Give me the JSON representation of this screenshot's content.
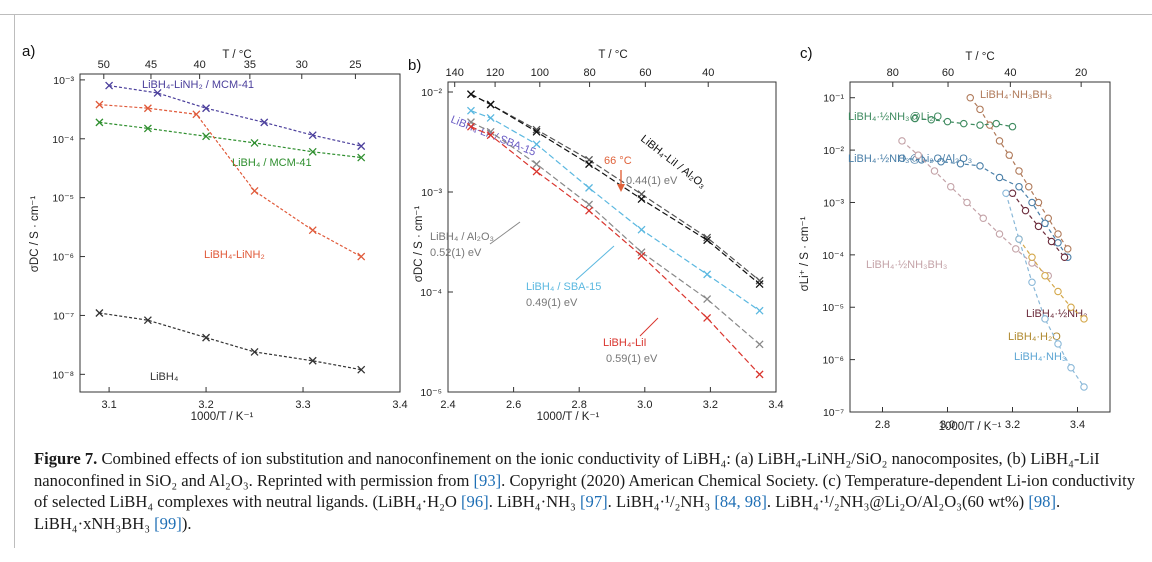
{
  "chart_data": [
    {
      "type": "scatter",
      "panel_label": "a)",
      "xlabel": "1000/T / K⁻¹",
      "ylabel": "σDC / S · cm⁻¹",
      "top_xlabel": "T / °C",
      "xlim": [
        3.07,
        3.4
      ],
      "ylim_log10": [
        -8.3,
        -2.9
      ],
      "y_scale": "log",
      "grid": false,
      "x_ticks": [
        "3.1",
        "3.2",
        "3.3",
        "3.4"
      ],
      "x_tick_values": [
        3.1,
        3.2,
        3.3,
        3.4
      ],
      "y_ticks": [
        "10⁻⁸",
        "10⁻⁷",
        "10⁻⁶",
        "10⁻⁵",
        "10⁻⁴",
        "10⁻³"
      ],
      "y_tick_exps": [
        -8,
        -7,
        -6,
        -5,
        -4,
        -3
      ],
      "top_ticks": [
        "50",
        "45",
        "40",
        "35",
        "30",
        "25"
      ],
      "top_tick_celsius": [
        50,
        45,
        40,
        35,
        30,
        25
      ],
      "series": [
        {
          "name": "LiBH₄-LiNH₂ / MCM-41",
          "color": "#4b3f9c",
          "x": [
            3.1,
            3.15,
            3.2,
            3.26,
            3.31,
            3.36
          ],
          "y": [
            0.0008,
            0.0006,
            0.00033,
            0.00019,
            0.000115,
            7.5e-05
          ]
        },
        {
          "name": "LiBH₄ / MCM-41",
          "color": "#2f8f2f",
          "x": [
            3.09,
            3.14,
            3.2,
            3.25,
            3.31,
            3.36
          ],
          "y": [
            0.00019,
            0.00015,
            0.00011,
            8.5e-05,
            6e-05,
            4.8e-05
          ]
        },
        {
          "name": "LiBH₄-LiNH₂",
          "color": "#e05a3a",
          "x": [
            3.09,
            3.14,
            3.19,
            3.25,
            3.31,
            3.36
          ],
          "y": [
            0.00038,
            0.00033,
            0.00026,
            1.3e-05,
            2.8e-06,
            1e-06
          ]
        },
        {
          "name": "LiBH₄",
          "color": "#333333",
          "x": [
            3.09,
            3.14,
            3.2,
            3.25,
            3.31,
            3.36
          ],
          "y": [
            1.1e-07,
            8.3e-08,
            4.2e-08,
            2.4e-08,
            1.7e-08,
            1.2e-08
          ]
        }
      ]
    },
    {
      "type": "scatter",
      "panel_label": "b)",
      "xlabel": "1000/T / K⁻¹",
      "ylabel": "σDC / S · cm⁻¹",
      "top_xlabel": "T / °C",
      "xlim": [
        2.4,
        3.4
      ],
      "ylim_log10": [
        -5,
        -1.9
      ],
      "y_scale": "log",
      "grid": false,
      "x_ticks": [
        "2.4",
        "2.6",
        "2.8",
        "3.0",
        "3.2",
        "3.4"
      ],
      "x_tick_values": [
        2.4,
        2.6,
        2.8,
        3.0,
        3.2,
        3.4
      ],
      "y_ticks": [
        "10⁻⁵",
        "10⁻⁴",
        "10⁻³",
        "10⁻²"
      ],
      "y_tick_exps": [
        -5,
        -4,
        -3,
        -2
      ],
      "top_ticks": [
        "140",
        "120",
        "100",
        "80",
        "60",
        "40"
      ],
      "top_tick_celsius": [
        140,
        120,
        100,
        80,
        60,
        40
      ],
      "annotations": [
        "66 °C",
        "0.44(1) eV",
        "0.52(1) eV",
        "0.49(1) eV",
        "0.59(1) eV"
      ],
      "series": [
        {
          "name": "LiBH₄-LiI / SBA-15",
          "color": "#555555",
          "x": [
            2.47,
            2.53,
            2.67,
            2.83,
            2.99,
            3.19,
            3.35
          ],
          "y": [
            0.0095,
            0.0075,
            0.0042,
            0.0021,
            0.00095,
            0.00035,
            0.00013
          ]
        },
        {
          "name": "LiBH₄-LiI / Al₂O₃",
          "color": "#111111",
          "x": [
            2.47,
            2.53,
            2.67,
            2.83,
            2.99,
            3.19,
            3.35
          ],
          "y": [
            0.0095,
            0.0075,
            0.004,
            0.0019,
            0.00085,
            0.00033,
            0.00012
          ]
        },
        {
          "name": "LiBH₄ / Al₂O₃",
          "color": "#888888",
          "x": [
            2.47,
            2.53,
            2.67,
            2.83,
            2.99,
            3.19,
            3.35
          ],
          "y": [
            0.005,
            0.004,
            0.0019,
            0.00075,
            0.00025,
            8.5e-05,
            3e-05
          ]
        },
        {
          "name": "LiBH₄ / SBA-15",
          "color": "#5bb8e0",
          "x": [
            2.47,
            2.53,
            2.67,
            2.83,
            2.99,
            3.19,
            3.35
          ],
          "y": [
            0.0065,
            0.0055,
            0.003,
            0.0011,
            0.00042,
            0.00015,
            6.5e-05
          ]
        },
        {
          "name": "LiBH₄-LiI",
          "color": "#d9352e",
          "x": [
            2.47,
            2.53,
            2.67,
            2.83,
            2.99,
            3.19,
            3.35
          ],
          "y": [
            0.0045,
            0.0037,
            0.0016,
            0.00065,
            0.00023,
            5.5e-05,
            1.5e-05
          ]
        }
      ]
    },
    {
      "type": "scatter",
      "panel_label": "c)",
      "xlabel": "1000/T / K⁻¹",
      "ylabel": "σLi⁺ / S · cm⁻¹",
      "top_xlabel": "T / °C",
      "xlim": [
        2.7,
        3.5
      ],
      "ylim_log10": [
        -7,
        -0.7
      ],
      "y_scale": "log",
      "grid": false,
      "x_ticks": [
        "2.8",
        "3.0",
        "3.2",
        "3.4"
      ],
      "x_tick_values": [
        2.8,
        3.0,
        3.2,
        3.4
      ],
      "y_ticks": [
        "10⁻⁷",
        "10⁻⁶",
        "10⁻⁵",
        "10⁻⁴",
        "10⁻³",
        "10⁻²",
        "10⁻¹"
      ],
      "y_tick_exps": [
        -7,
        -6,
        -5,
        -4,
        -3,
        -2,
        -1
      ],
      "top_ticks": [
        "80",
        "60",
        "40",
        "20"
      ],
      "top_tick_celsius": [
        80,
        60,
        40,
        20
      ],
      "series": [
        {
          "name": "LiBH₄·NH₃BH₃",
          "color": "#b07a5a",
          "x": [
            3.07,
            3.1,
            3.13,
            3.16,
            3.19,
            3.22,
            3.25,
            3.28,
            3.31,
            3.34,
            3.37
          ],
          "y": [
            0.1,
            0.06,
            0.03,
            0.015,
            0.008,
            0.004,
            0.002,
            0.001,
            0.0005,
            0.00025,
            0.00013
          ]
        },
        {
          "name": "LiBH₄·½NH₃@Li₂O",
          "color": "#3e8a5f",
          "x": [
            2.9,
            2.95,
            3.0,
            3.05,
            3.1,
            3.15,
            3.2
          ],
          "y": [
            0.04,
            0.038,
            0.035,
            0.032,
            0.03,
            0.032,
            0.028
          ]
        },
        {
          "name": "LiBH₄·½NH₃@Li₂O/Al₂O₃",
          "color": "#4a7fa8",
          "x": [
            2.86,
            2.92,
            2.98,
            3.04,
            3.1,
            3.16,
            3.22,
            3.26,
            3.3,
            3.34,
            3.37
          ],
          "y": [
            0.007,
            0.0065,
            0.006,
            0.0055,
            0.005,
            0.003,
            0.002,
            0.001,
            0.0004,
            0.00017,
            9e-05
          ]
        },
        {
          "name": "LiBH₄·½NH₃BH₃",
          "color": "#c4a3a8",
          "x": [
            2.86,
            2.91,
            2.96,
            3.01,
            3.06,
            3.11,
            3.16,
            3.21,
            3.26,
            3.31
          ],
          "y": [
            0.015,
            0.008,
            0.004,
            0.002,
            0.001,
            0.0005,
            0.00025,
            0.00013,
            7e-05,
            4e-05
          ]
        },
        {
          "name": "LiBH₄·½NH₃",
          "color": "#6a2a3a",
          "x": [
            3.2,
            3.24,
            3.28,
            3.32,
            3.36
          ],
          "y": [
            0.0015,
            0.0007,
            0.00035,
            0.00018,
            9e-05
          ]
        },
        {
          "name": "LiBH₄·H₂O",
          "color": "#d4a84a",
          "x": [
            3.22,
            3.26,
            3.3,
            3.34,
            3.38,
            3.42
          ],
          "y": [
            0.0002,
            9e-05,
            4e-05,
            2e-05,
            1e-05,
            6e-06
          ]
        },
        {
          "name": "LiBH₄·NH₃",
          "color": "#8ab8d8",
          "x": [
            3.18,
            3.22,
            3.26,
            3.3,
            3.34,
            3.38,
            3.42
          ],
          "y": [
            0.0015,
            0.0002,
            3e-05,
            6e-06,
            2e-06,
            7e-07,
            3e-07
          ]
        }
      ]
    }
  ],
  "caption": {
    "label": "Figure 7.",
    "pre": " Combined effects of ion substitution and nanoconfinement on the ionic conductivity of LiBH₄: (a) LiBH₄-LiNH₂/SiO₂ nanocomposites, (b) LiBH₄-LiI nanoconfined in SiO₂ and Al₂O₃. Reprinted with permission from ",
    "ref1": "[93]",
    "mid1": ". Copyright (2020) American Chemical Society. (c) Temperature-dependent Li-ion conductivity of selected LiBH₄ complexes with neutral ligands. (LiBH₄·H₂O ",
    "ref2": "[96]",
    "mid2": ". LiBH₄·NH₃ ",
    "ref3": "[97]",
    "mid3": ". LiBH₄·¹/₂NH₃ ",
    "ref4": "[84, 98]",
    "mid4": ". LiBH₄·¹/₂NH₃@Li₂O/Al₂O₃(60 wt%) ",
    "ref5": "[98]",
    "mid5": ". LiBH₄·xNH₃BH₃ ",
    "ref6": "[99]",
    "post": ")."
  }
}
